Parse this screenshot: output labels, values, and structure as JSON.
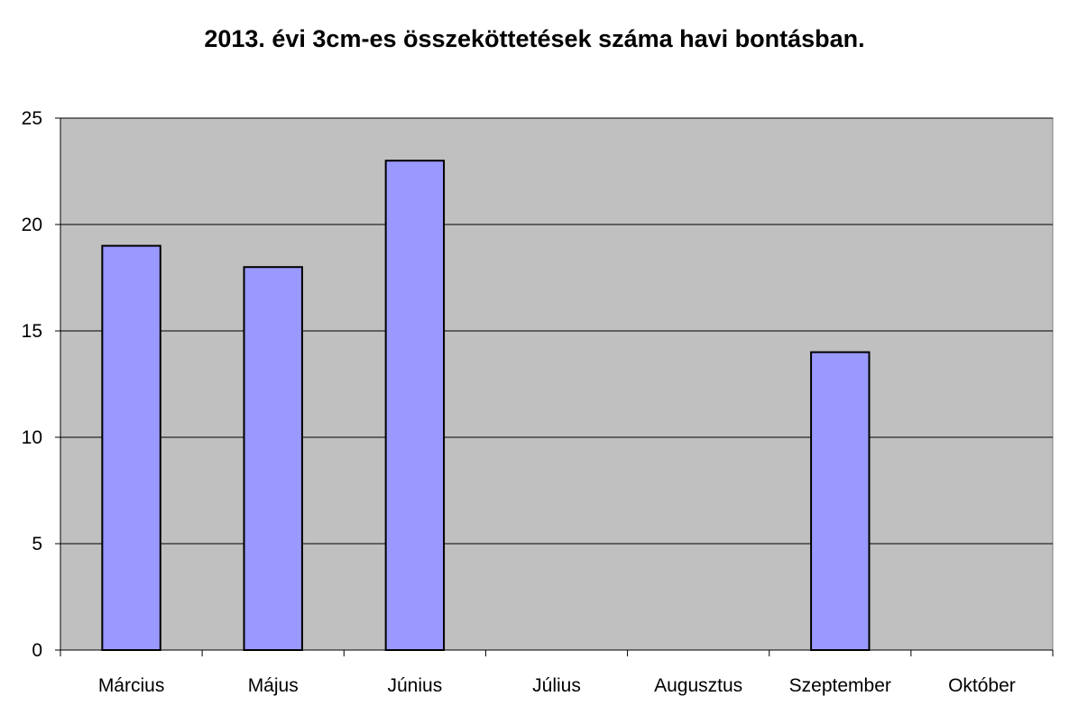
{
  "chart_data": {
    "type": "bar",
    "title": "2013. évi 3cm-es összeköttetések száma havi bontásban.",
    "categories": [
      "Március",
      "Május",
      "Június",
      "Július",
      "Augusztus",
      "Szeptember",
      "Október"
    ],
    "values": [
      19,
      18,
      23,
      0,
      0,
      14,
      0
    ],
    "ylim": [
      0,
      25
    ],
    "yticks": [
      "0",
      "5",
      "10",
      "15",
      "20",
      "25"
    ],
    "grid": true,
    "legend": "none",
    "colors": {
      "plot_background": "#c0c0c0",
      "bar_fill": "#9999ff",
      "bar_stroke": "#000000",
      "gridline": "#000000"
    }
  }
}
